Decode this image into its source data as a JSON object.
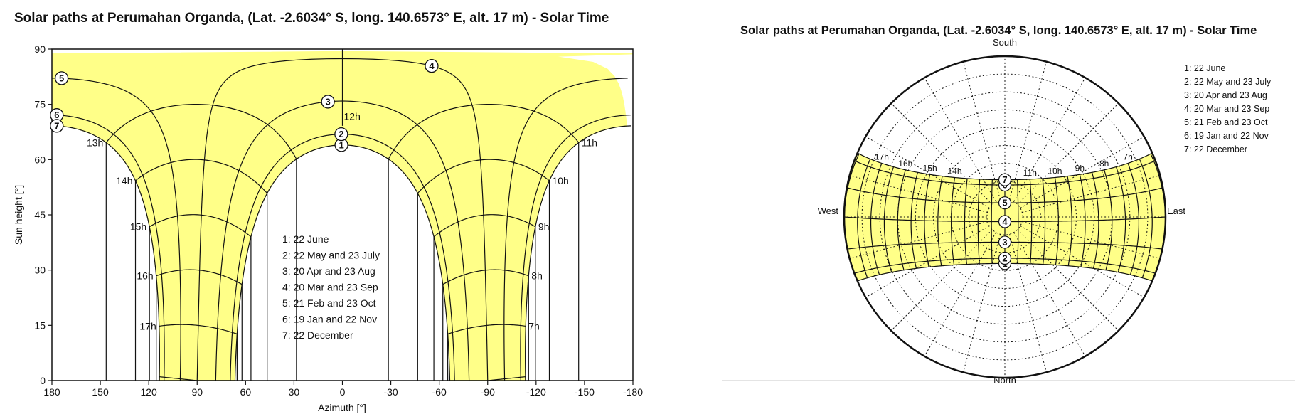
{
  "chart_data": [
    {
      "type": "line",
      "title": "Solar paths at Perumahan Organda, (Lat. -2.6034° S, long. 140.6573° E, alt. 17 m) - Solar Time",
      "xlabel": "Azimuth [°]",
      "ylabel": "Sun height [°]",
      "xlim": [
        180,
        -180
      ],
      "ylim": [
        0,
        90
      ],
      "x_ticks": [
        "180",
        "150",
        "120",
        "90",
        "60",
        "30",
        "0",
        "-30",
        "-60",
        "-90",
        "-120",
        "-150",
        "-180"
      ],
      "y_ticks": [
        "0",
        "15",
        "30",
        "45",
        "60",
        "75",
        "90"
      ],
      "fill_color": "#ffff88",
      "legend": [
        "1: 22 June",
        "2: 22 May and 23 July",
        "3: 20 Apr and 23 Aug",
        "4: 20 Mar and 23 Sep",
        "5: 21 Feb and 23 Oct",
        "6: 19 Jan and 22 Nov",
        "7: 22 December"
      ],
      "series": [
        {
          "marker": "1",
          "declination": 23.44
        },
        {
          "marker": "2",
          "declination": 20.5
        },
        {
          "marker": "3",
          "declination": 11.5
        },
        {
          "marker": "4",
          "declination": 0
        },
        {
          "marker": "5",
          "declination": -10.5
        },
        {
          "marker": "6",
          "declination": -20.5
        },
        {
          "marker": "7",
          "declination": -23.44
        }
      ],
      "hour_labels": [
        "7h",
        "8h",
        "9h",
        "10h",
        "11h",
        "12h",
        "13h",
        "14h",
        "15h",
        "16h",
        "17h"
      ]
    },
    {
      "type": "polar",
      "title": "Solar paths at Perumahan Organda, (Lat. -2.6034° S, long. 140.6573° E, alt. 17 m) - Solar Time",
      "directions": {
        "top": "South",
        "bottom": "North",
        "left": "West",
        "right": "East"
      },
      "fill_color": "#ffff88",
      "legend": [
        "1: 22 June",
        "2: 22 May and 23 July",
        "3: 20 Apr and 23 Aug",
        "4: 20 Mar and 23 Sep",
        "5: 21 Feb and 23 Oct",
        "6: 19 Jan and 22 Nov",
        "7: 22 December"
      ],
      "hour_labels": [
        "7h",
        "8h",
        "9h",
        "10h",
        "11h",
        "14h",
        "15h",
        "16h",
        "17h"
      ]
    }
  ]
}
